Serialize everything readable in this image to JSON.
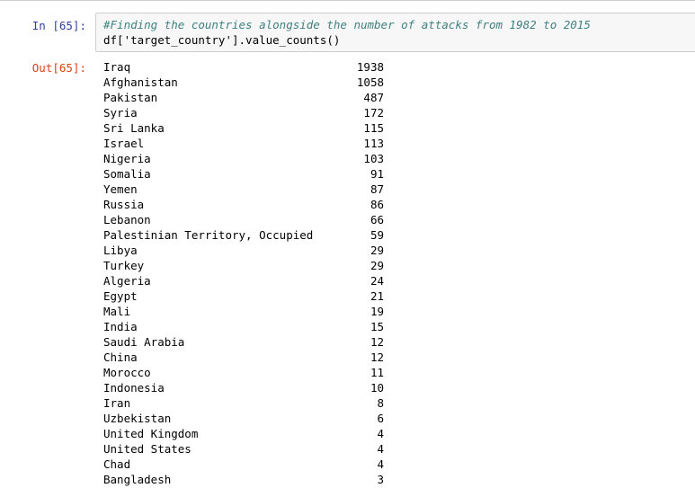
{
  "cell": {
    "in_prompt": "In [65]:",
    "out_prompt": "Out[65]:",
    "code_comment": "#Finding the countries alongside the number of attacks from 1982 to 2015",
    "code_line": "df['target_country'].value_counts()"
  },
  "output": {
    "rows": [
      {
        "country": "Iraq",
        "count": "1938"
      },
      {
        "country": "Afghanistan",
        "count": "1058"
      },
      {
        "country": "Pakistan",
        "count": "487"
      },
      {
        "country": "Syria",
        "count": "172"
      },
      {
        "country": "Sri Lanka",
        "count": "115"
      },
      {
        "country": "Israel",
        "count": "113"
      },
      {
        "country": "Nigeria",
        "count": "103"
      },
      {
        "country": "Somalia",
        "count": "91"
      },
      {
        "country": "Yemen",
        "count": "87"
      },
      {
        "country": "Russia",
        "count": "86"
      },
      {
        "country": "Lebanon",
        "count": "66"
      },
      {
        "country": "Palestinian Territory, Occupied",
        "count": "59"
      },
      {
        "country": "Libya",
        "count": "29"
      },
      {
        "country": "Turkey",
        "count": "29"
      },
      {
        "country": "Algeria",
        "count": "24"
      },
      {
        "country": "Egypt",
        "count": "21"
      },
      {
        "country": "Mali",
        "count": "19"
      },
      {
        "country": "India",
        "count": "15"
      },
      {
        "country": "Saudi Arabia",
        "count": "12"
      },
      {
        "country": "China",
        "count": "12"
      },
      {
        "country": "Morocco",
        "count": "11"
      },
      {
        "country": "Indonesia",
        "count": "10"
      },
      {
        "country": "Iran",
        "count": "8"
      },
      {
        "country": "Uzbekistan",
        "count": "6"
      },
      {
        "country": "United Kingdom",
        "count": "4"
      },
      {
        "country": "United States",
        "count": "4"
      },
      {
        "country": "Chad",
        "count": "4"
      },
      {
        "country": "Bangladesh",
        "count": "3"
      }
    ]
  },
  "colors": {
    "in_prompt": "#303f9f",
    "out_prompt": "#d84315",
    "comment": "#408080",
    "input_bg": "#f7f7f7",
    "border": "#cfcfcf"
  }
}
